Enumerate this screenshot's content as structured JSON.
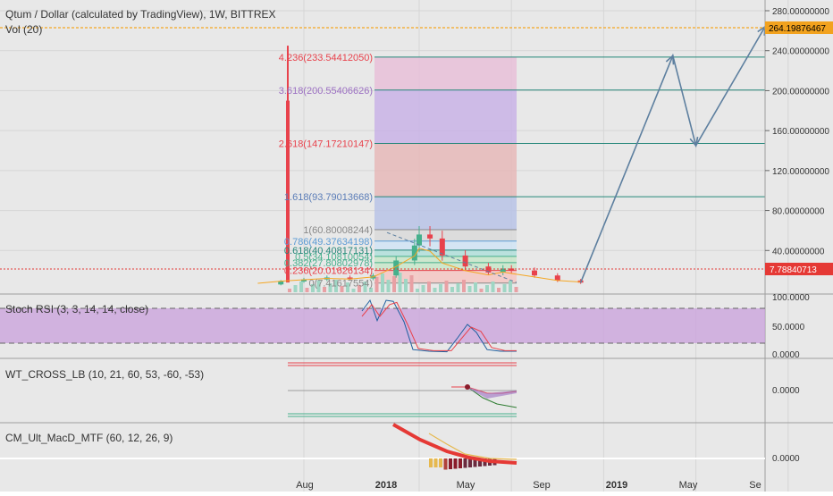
{
  "header": {
    "title": "Qtum / Dollar (calculated by TradingView), 1W, BITTREX",
    "volume_label": "Vol (20)"
  },
  "colors": {
    "background": "#e8e8e8",
    "text": "#333333",
    "up": "#46b08c",
    "down": "#e8424c",
    "price_line": "#e53935",
    "target_line": "#f5a623",
    "target_badge": "#f2a21e",
    "fib_teal": "#26877a",
    "fib_blue": "#5b7db8",
    "arrow": "#5d7f9f",
    "rsi_band": "#c9a0dc",
    "macd_up": "#e6b84e",
    "macd_down": "#8a1c2b"
  },
  "price_axis": {
    "ticks": [
      "280.00000000",
      "240.00000000",
      "200.00000000",
      "160.00000000",
      "120.00000000",
      "80.00000000",
      "40.00000000"
    ],
    "target_badge": "264.19876467",
    "last_price_badge": "7.78840713"
  },
  "fib_labels": [
    {
      "text": "4.236(233.54412050)",
      "color": "#e8424c"
    },
    {
      "text": "3.618(200.55406626)",
      "color": "#9b6fc2"
    },
    {
      "text": "2.618(147.17210147)",
      "color": "#e8424c"
    },
    {
      "text": "1.618(93.79013668)",
      "color": "#5b7db8"
    },
    {
      "text": "1(60.80008244)",
      "color": "#888888"
    },
    {
      "text": "0.786(49.37634198)",
      "color": "#5b9bd5"
    },
    {
      "text": "0.618(40.40817131)",
      "color": "#26877a"
    },
    {
      "text": "0.5(34.10810054)",
      "color": "#46b08c"
    },
    {
      "text": "0.382(27.80802978)",
      "color": "#46b08c"
    },
    {
      "text": "0.236(20.01626134)",
      "color": "#e8424c"
    },
    {
      "text": "0(7.41617554)",
      "color": "#888888"
    }
  ],
  "indicators": {
    "stoch": {
      "label": "Stoch RSI (3, 3, 14, 14, close)",
      "ticks": [
        "100.0000",
        "50.0000",
        "0.0000"
      ]
    },
    "wt": {
      "label": "WT_CROSS_LB (10, 21, 60, 53, -60, -53)",
      "ticks": [
        "0.0000"
      ]
    },
    "macd": {
      "label": "CM_Ult_MacD_MTF (60, 12, 26, 9)",
      "ticks": [
        "0.0000"
      ]
    }
  },
  "time_axis": {
    "labels": [
      "Aug",
      "2018",
      "May",
      "Sep",
      "2019",
      "May",
      "Se"
    ]
  },
  "chart_data": {
    "type": "line",
    "title": "Qtum / Dollar (calculated by TradingView), 1W, BITTREX",
    "ylim": [
      0,
      290
    ],
    "y_ticks": [
      40,
      80,
      120,
      160,
      200,
      240,
      280
    ],
    "last_price": 7.78840713,
    "target_level": 264.19876467,
    "fib_levels": [
      {
        "ratio": 0,
        "value": 7.41617554
      },
      {
        "ratio": 0.236,
        "value": 20.01626134
      },
      {
        "ratio": 0.382,
        "value": 27.80802978
      },
      {
        "ratio": 0.5,
        "value": 34.10810054
      },
      {
        "ratio": 0.618,
        "value": 40.40817131
      },
      {
        "ratio": 0.786,
        "value": 49.37634198
      },
      {
        "ratio": 1,
        "value": 60.80008244
      },
      {
        "ratio": 1.618,
        "value": 93.79013668
      },
      {
        "ratio": 2.618,
        "value": 147.17210147
      },
      {
        "ratio": 3.618,
        "value": 200.55406626
      },
      {
        "ratio": 4.236,
        "value": 233.5441205
      }
    ],
    "price_series": [
      {
        "x": "2017-06",
        "close": 6
      },
      {
        "x": "2017-07",
        "close": 9
      },
      {
        "x": "2017-08",
        "close": 11
      },
      {
        "x": "2017-09",
        "close": 13
      },
      {
        "x": "2017-10",
        "close": 12
      },
      {
        "x": "2017-11",
        "close": 15
      },
      {
        "x": "2017-12",
        "close": 30
      },
      {
        "x": "2017-12-25",
        "close": 45
      },
      {
        "x": "2018-01",
        "close": 56
      },
      {
        "x": "2018-01-15",
        "close": 52
      },
      {
        "x": "2018-02",
        "close": 35
      },
      {
        "x": "2018-03",
        "close": 24
      },
      {
        "x": "2018-04",
        "close": 18
      },
      {
        "x": "2018-04-20",
        "close": 22
      },
      {
        "x": "2018-05",
        "close": 20
      },
      {
        "x": "2018-06",
        "close": 15
      },
      {
        "x": "2018-07",
        "close": 10
      },
      {
        "x": "2018-08",
        "close": 7.8
      }
    ],
    "projection_path": [
      {
        "x": "2018-08",
        "y": 7.8
      },
      {
        "x": "2018-12",
        "y": 235
      },
      {
        "x": "2019-01",
        "y": 145
      },
      {
        "x": "2019-04",
        "y": 264
      }
    ]
  }
}
